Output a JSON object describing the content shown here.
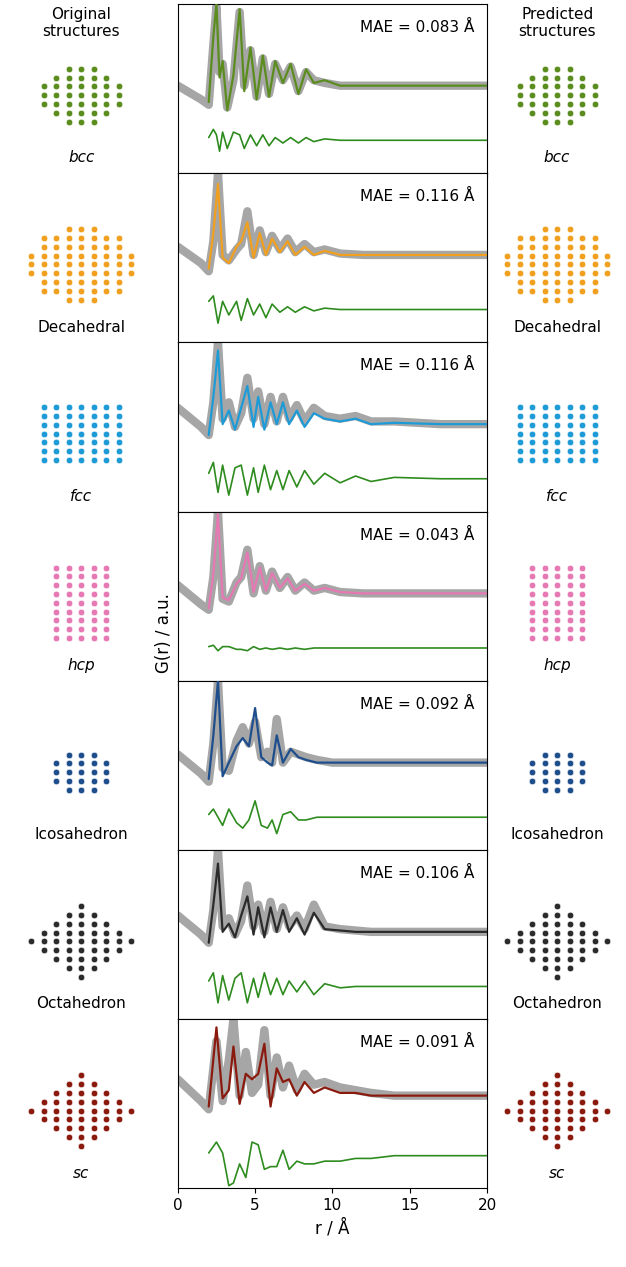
{
  "headers": {
    "left": "Original\nstructures",
    "right": "Predicted\nstructures"
  },
  "y_label": "G(r) / a.u.",
  "chart_data": [
    {
      "type": "line",
      "structure": "bcc",
      "annotation": "MAE = 0.083 Å",
      "x": [
        0,
        1.5,
        2.0,
        2.3,
        2.5,
        2.7,
        2.9,
        3.2,
        3.6,
        4.0,
        4.3,
        4.7,
        5.1,
        5.5,
        5.9,
        6.3,
        6.8,
        7.3,
        7.8,
        8.3,
        8.8,
        9.5,
        10.5,
        12,
        14,
        17,
        20
      ],
      "series": [
        {
          "color": "#a6a6a6",
          "values": [
            2.0,
            1.5,
            1.3,
            3.5,
            4.9,
            2.5,
            2.8,
            1.2,
            2.2,
            4.7,
            2.0,
            3.3,
            1.6,
            3.0,
            1.7,
            2.8,
            2.2,
            2.7,
            1.8,
            2.5,
            2.2,
            2.1,
            2.0,
            2.0,
            2.0,
            2.0,
            2.0
          ]
        },
        {
          "color": "#5b8c1e",
          "values": [
            null,
            null,
            1.4,
            3.8,
            5.0,
            2.3,
            2.9,
            1.1,
            2.4,
            4.8,
            1.8,
            3.4,
            1.5,
            3.1,
            1.6,
            2.9,
            2.1,
            2.8,
            1.7,
            2.6,
            2.1,
            2.2,
            2.0,
            2.0,
            2.0,
            2.0,
            2.0
          ]
        },
        {
          "color": "#2e8b1e",
          "values": [
            null,
            null,
            0.1,
            0.4,
            0.2,
            -0.4,
            0.3,
            -0.3,
            0.3,
            0.2,
            -0.3,
            0.2,
            -0.2,
            0.2,
            -0.2,
            0.1,
            -0.1,
            0.1,
            -0.1,
            0.1,
            -0.05,
            0.05,
            0,
            0,
            0,
            0,
            0
          ]
        }
      ],
      "xlim": [
        0,
        20
      ],
      "xticks": [
        0,
        5,
        10,
        15,
        20
      ],
      "ylim": [
        -1.2,
        5.0
      ],
      "tick_labels": false
    },
    {
      "type": "line",
      "structure": "Decahedral",
      "annotation": "MAE = 0.116 Å",
      "x": [
        0,
        1.5,
        2.0,
        2.3,
        2.6,
        2.9,
        3.3,
        3.8,
        4.1,
        4.5,
        4.9,
        5.3,
        5.7,
        6.1,
        6.6,
        7.1,
        7.6,
        8.2,
        8.8,
        9.5,
        10.5,
        12,
        14,
        17,
        20
      ],
      "series": [
        {
          "color": "#a6a6a6",
          "values": [
            2.3,
            1.7,
            1.4,
            2.5,
            5.0,
            2.0,
            1.8,
            2.2,
            2.4,
            3.6,
            2.0,
            2.9,
            2.1,
            2.7,
            2.2,
            2.6,
            2.1,
            2.4,
            2.1,
            2.2,
            2.05,
            2.0,
            2.0,
            2.0,
            2.0
          ]
        },
        {
          "color": "#f0a01e",
          "values": [
            null,
            null,
            1.5,
            2.8,
            4.6,
            1.9,
            1.7,
            2.3,
            2.5,
            3.2,
            1.9,
            2.8,
            2.0,
            2.6,
            2.1,
            2.5,
            2.0,
            2.3,
            2.0,
            2.15,
            2.0,
            2.0,
            2.0,
            2.0,
            2.0
          ]
        },
        {
          "color": "#2e8b1e",
          "values": [
            null,
            null,
            0.3,
            0.5,
            -0.5,
            0.3,
            -0.2,
            0.3,
            -0.4,
            0.4,
            -0.2,
            0.2,
            -0.3,
            0.2,
            -0.1,
            0.1,
            -0.1,
            0.1,
            -0.05,
            0.05,
            0,
            0,
            0,
            0,
            0
          ]
        }
      ],
      "xlim": [
        0,
        20
      ],
      "xticks": [
        0,
        5,
        10,
        15,
        20
      ],
      "ylim": [
        -1.2,
        5.0
      ],
      "tick_labels": false
    },
    {
      "type": "line",
      "structure": "fcc",
      "annotation": "MAE = 0.116 Å",
      "x": [
        0,
        1.5,
        2.0,
        2.3,
        2.6,
        2.9,
        3.3,
        3.7,
        4.1,
        4.5,
        4.9,
        5.2,
        5.6,
        6.0,
        6.4,
        6.8,
        7.2,
        7.7,
        8.2,
        8.8,
        9.5,
        10.5,
        11.5,
        12.5,
        14,
        17,
        20
      ],
      "series": [
        {
          "color": "#a6a6a6",
          "values": [
            2.6,
            1.9,
            1.6,
            2.8,
            5.0,
            2.2,
            2.8,
            1.9,
            2.4,
            3.7,
            2.2,
            3.2,
            2.0,
            3.0,
            2.1,
            3.0,
            2.2,
            2.7,
            2.1,
            2.6,
            2.3,
            2.2,
            2.3,
            2.1,
            2.1,
            2.0,
            2.0
          ]
        },
        {
          "color": "#1e9bd7",
          "values": [
            null,
            null,
            1.6,
            3.0,
            4.7,
            2.0,
            2.5,
            1.8,
            2.6,
            3.4,
            1.9,
            3.0,
            1.8,
            2.8,
            2.0,
            2.8,
            2.0,
            2.5,
            1.9,
            2.4,
            2.2,
            2.1,
            2.2,
            2.0,
            2.05,
            2.0,
            2.0
          ]
        },
        {
          "color": "#2e8b1e",
          "values": [
            null,
            null,
            0.2,
            0.6,
            -0.5,
            0.5,
            -0.6,
            0.4,
            0.5,
            -0.6,
            0.4,
            -0.5,
            0.5,
            -0.4,
            0.3,
            -0.4,
            0.3,
            -0.3,
            0.3,
            -0.2,
            0.2,
            -0.15,
            0.1,
            -0.1,
            0.05,
            0,
            0
          ]
        }
      ],
      "xlim": [
        0,
        20
      ],
      "xticks": [
        0,
        5,
        10,
        15,
        20
      ],
      "ylim": [
        -1.2,
        5.0
      ],
      "tick_labels": false
    },
    {
      "type": "line",
      "structure": "hcp",
      "annotation": "MAE = 0.043 Å",
      "x": [
        0,
        1.5,
        2.0,
        2.3,
        2.6,
        2.9,
        3.3,
        3.8,
        4.1,
        4.5,
        4.9,
        5.3,
        5.7,
        6.1,
        6.6,
        7.1,
        7.6,
        8.2,
        8.8,
        9.5,
        10.5,
        12,
        14,
        17,
        20
      ],
      "series": [
        {
          "color": "#a6a6a6",
          "values": [
            2.3,
            1.6,
            1.4,
            2.6,
            5.0,
            1.8,
            1.7,
            2.4,
            2.6,
            3.6,
            2.0,
            3.0,
            2.1,
            2.8,
            2.2,
            2.6,
            2.1,
            2.4,
            2.1,
            2.2,
            2.05,
            2.0,
            2.0,
            2.0,
            2.0
          ]
        },
        {
          "color": "#e678b4",
          "values": [
            null,
            null,
            1.45,
            2.7,
            4.9,
            1.85,
            1.75,
            2.35,
            2.55,
            3.5,
            2.05,
            2.95,
            2.1,
            2.75,
            2.2,
            2.55,
            2.1,
            2.35,
            2.1,
            2.2,
            2.05,
            2.0,
            2.0,
            2.0,
            2.0
          ]
        },
        {
          "color": "#2e8b1e",
          "values": [
            null,
            null,
            0.05,
            0.1,
            -0.1,
            0.05,
            0.05,
            -0.05,
            -0.05,
            -0.1,
            0.05,
            -0.05,
            0,
            -0.05,
            0,
            -0.05,
            0,
            -0.05,
            0,
            0,
            0,
            0,
            0,
            0,
            0
          ]
        }
      ],
      "xlim": [
        0,
        20
      ],
      "xticks": [
        0,
        5,
        10,
        15,
        20
      ],
      "ylim": [
        -1.2,
        5.0
      ],
      "tick_labels": false
    },
    {
      "type": "line",
      "structure": "Icosahedron",
      "annotation": "MAE = 0.092 Å",
      "x": [
        0,
        1.5,
        2.0,
        2.3,
        2.6,
        2.9,
        3.3,
        3.8,
        4.2,
        4.6,
        5.0,
        5.4,
        5.8,
        6.1,
        6.4,
        6.8,
        7.3,
        7.8,
        8.3,
        9.0,
        10,
        12,
        14,
        17,
        20
      ],
      "series": [
        {
          "color": "#a6a6a6",
          "values": [
            2.3,
            1.6,
            1.3,
            2.7,
            5.0,
            1.8,
            1.7,
            2.8,
            3.3,
            2.7,
            3.5,
            2.2,
            2.4,
            2.0,
            3.6,
            2.0,
            2.4,
            2.3,
            2.2,
            2.1,
            2.0,
            2.0,
            2.0,
            2.0,
            2.0
          ]
        },
        {
          "color": "#1f4e8c",
          "values": [
            null,
            null,
            1.4,
            3.0,
            5.0,
            1.5,
            2.0,
            2.6,
            2.9,
            2.6,
            4.0,
            2.2,
            2.0,
            1.9,
            3.0,
            2.0,
            2.5,
            2.2,
            2.1,
            2.0,
            2.0,
            2.0,
            2.0,
            2.0,
            2.0
          ]
        },
        {
          "color": "#2e8b1e",
          "values": [
            null,
            null,
            0.1,
            0.3,
            0,
            -0.3,
            0.3,
            -0.2,
            -0.4,
            -0.1,
            0.6,
            -0.3,
            -0.4,
            -0.1,
            -0.6,
            0.1,
            0.2,
            -0.1,
            -0.1,
            0,
            0,
            0,
            0,
            0,
            0
          ]
        }
      ],
      "xlim": [
        0,
        20
      ],
      "xticks": [
        0,
        5,
        10,
        15,
        20
      ],
      "ylim": [
        -1.2,
        5.0
      ],
      "tick_labels": false
    },
    {
      "type": "line",
      "structure": "Octahedron",
      "annotation": "MAE = 0.106 Å",
      "x": [
        0,
        1.5,
        2.0,
        2.3,
        2.6,
        2.9,
        3.3,
        3.7,
        4.1,
        4.5,
        4.9,
        5.2,
        5.6,
        6.0,
        6.4,
        6.8,
        7.2,
        7.7,
        8.2,
        8.8,
        9.5,
        10.5,
        11.5,
        12.5,
        14,
        17,
        20
      ],
      "series": [
        {
          "color": "#a6a6a6",
          "values": [
            2.6,
            1.9,
            1.6,
            2.8,
            5.0,
            2.2,
            2.5,
            1.9,
            2.4,
            3.7,
            2.2,
            3.0,
            2.0,
            3.1,
            2.1,
            2.9,
            2.2,
            2.6,
            2.1,
            3.0,
            2.2,
            2.1,
            2.05,
            2.0,
            2.0,
            2.0,
            2.0
          ]
        },
        {
          "color": "#2b2b2b",
          "values": [
            null,
            null,
            1.6,
            3.0,
            4.5,
            2.0,
            2.3,
            1.8,
            2.6,
            3.3,
            1.9,
            2.9,
            1.8,
            2.9,
            2.0,
            2.8,
            2.0,
            2.5,
            1.9,
            2.7,
            2.1,
            2.05,
            2.0,
            2.0,
            2.0,
            2.0,
            2.0
          ]
        },
        {
          "color": "#2e8b1e",
          "values": [
            null,
            null,
            0.2,
            0.5,
            -0.6,
            0.4,
            -0.5,
            0.3,
            0.5,
            -0.6,
            0.3,
            -0.4,
            0.5,
            -0.3,
            0.3,
            -0.3,
            0.2,
            -0.2,
            0.2,
            -0.3,
            0.1,
            -0.05,
            0,
            0,
            0,
            0,
            0
          ]
        }
      ],
      "xlim": [
        0,
        20
      ],
      "xticks": [
        0,
        5,
        10,
        15,
        20
      ],
      "ylim": [
        -1.2,
        5.0
      ],
      "tick_labels": false
    },
    {
      "type": "line",
      "structure": "sc",
      "annotation": "MAE = 0.091 Å",
      "x_label": "r / Å",
      "x": [
        0,
        1.5,
        2.0,
        2.5,
        2.9,
        3.3,
        3.6,
        4.0,
        4.4,
        4.8,
        5.2,
        5.6,
        6.0,
        6.4,
        6.8,
        7.2,
        7.7,
        8.2,
        8.8,
        9.5,
        10.5,
        11.5,
        12.5,
        14,
        17,
        20
      ],
      "series": [
        {
          "color": "#a6a6a6",
          "values": [
            2.8,
            2.0,
            1.7,
            4.2,
            2.0,
            3.5,
            5.0,
            2.2,
            3.8,
            2.3,
            2.6,
            4.6,
            2.2,
            3.6,
            2.5,
            3.3,
            2.4,
            3.0,
            2.6,
            2.7,
            2.5,
            2.4,
            2.3,
            2.2,
            2.2,
            2.2
          ]
        },
        {
          "color": "#8b1a0e",
          "values": [
            null,
            null,
            1.8,
            4.7,
            2.1,
            2.4,
            4.0,
            1.9,
            3.0,
            2.8,
            3.0,
            4.1,
            1.8,
            3.2,
            2.7,
            2.8,
            2.2,
            2.7,
            2.3,
            2.5,
            2.3,
            2.3,
            2.2,
            2.2,
            2.2,
            2.2
          ]
        },
        {
          "color": "#2e8b1e",
          "values": [
            null,
            null,
            0.1,
            0.5,
            0.1,
            -1.1,
            -1.0,
            -0.3,
            -0.8,
            0.5,
            0.4,
            -0.5,
            -0.4,
            -0.4,
            0.2,
            -0.5,
            -0.2,
            -0.3,
            -0.3,
            -0.2,
            -0.2,
            -0.1,
            -0.1,
            0,
            0,
            0
          ]
        }
      ],
      "xlim": [
        0,
        20
      ],
      "xticks": [
        0,
        5,
        10,
        15,
        20
      ],
      "ylim": [
        -1.2,
        5.0
      ],
      "tick_labels": "x"
    }
  ]
}
